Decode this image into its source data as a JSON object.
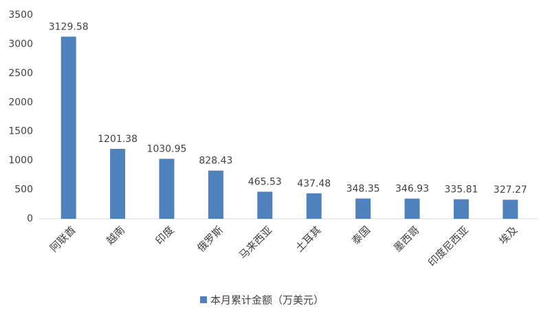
{
  "chart_data": {
    "type": "bar",
    "categories": [
      "阿联酋",
      "越南",
      "印度",
      "俄罗斯",
      "马来西亚",
      "土耳其",
      "泰国",
      "墨西哥",
      "印度尼西亚",
      "埃及"
    ],
    "series": [
      {
        "name": "本月累计金额（万美元）",
        "color": "#4f81bd",
        "values": [
          3129.58,
          1201.38,
          1030.95,
          828.43,
          465.53,
          437.48,
          348.35,
          346.93,
          335.81,
          327.27
        ]
      }
    ],
    "ylim": [
      0,
      3500
    ],
    "yticks": [
      0,
      500,
      1000,
      1500,
      2000,
      2500,
      3000,
      3500
    ],
    "grid": false,
    "legend": "bottom"
  }
}
